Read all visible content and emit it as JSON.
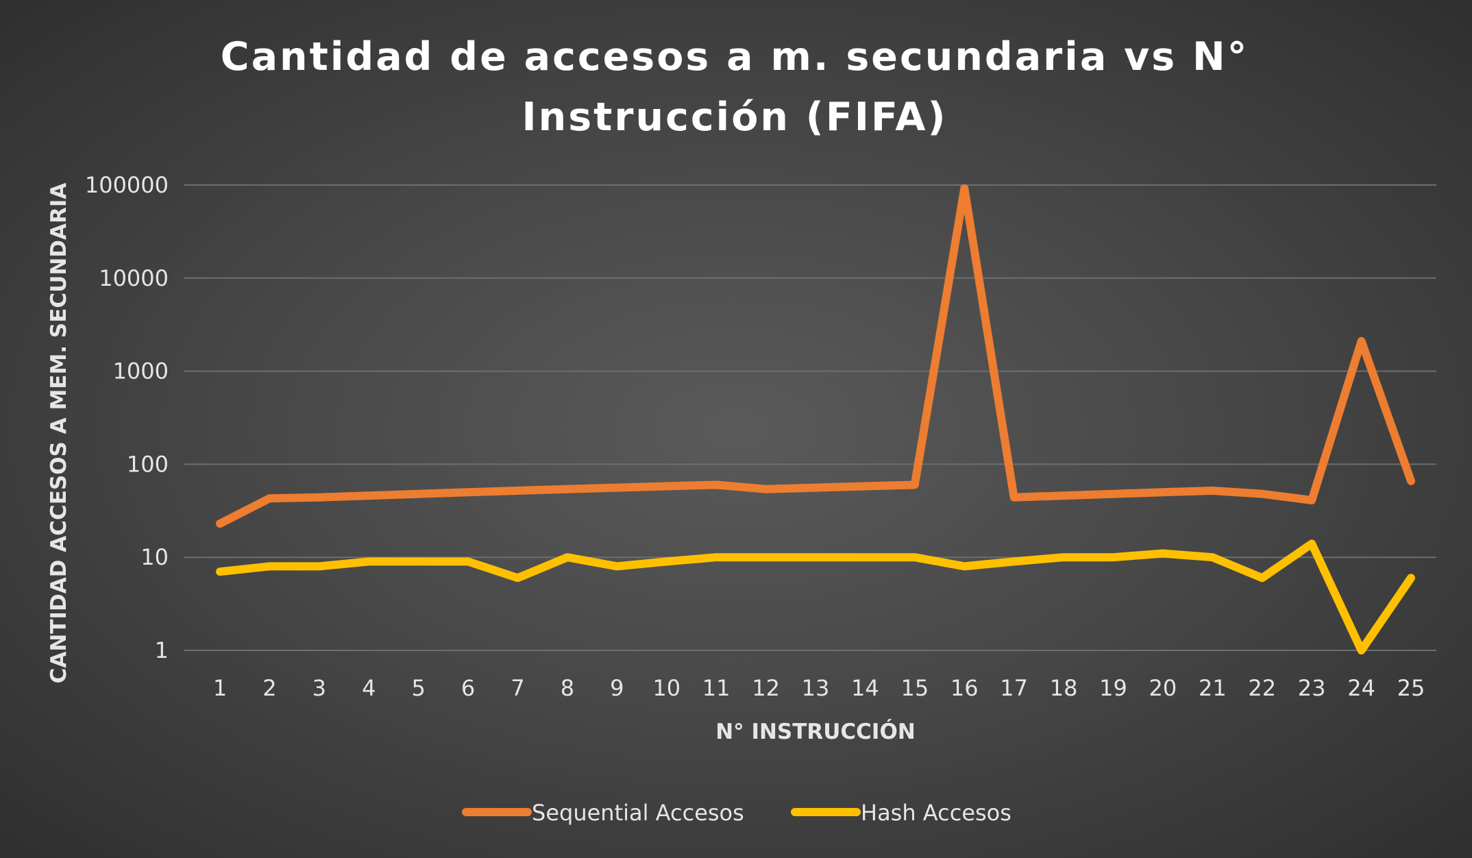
{
  "chart_data": {
    "type": "line",
    "title_lines": [
      "Cantidad de accesos a m. secundaria vs N°",
      "Instrucción (FIFA)"
    ],
    "xlabel": "N° INSTRUCCIÓN",
    "ylabel": "CANTIDAD ACCESOS A MEM. SECUNDARIA",
    "y_scale": "log",
    "ylim": [
      1,
      100000
    ],
    "y_ticks": [
      "1",
      "10",
      "100",
      "1000",
      "10000",
      "100000"
    ],
    "categories": [
      "1",
      "2",
      "3",
      "4",
      "5",
      "6",
      "7",
      "8",
      "9",
      "10",
      "11",
      "12",
      "13",
      "14",
      "15",
      "16",
      "17",
      "18",
      "19",
      "20",
      "21",
      "22",
      "23",
      "24",
      "25"
    ],
    "grid": "horizontal",
    "legend_position": "bottom",
    "series": [
      {
        "name": "Sequential Accesos",
        "color": "#ED7D31",
        "values": [
          23,
          43,
          44,
          46,
          48,
          50,
          52,
          54,
          56,
          58,
          60,
          54,
          56,
          58,
          60,
          92000,
          44,
          46,
          48,
          50,
          52,
          48,
          41,
          2100,
          66
        ]
      },
      {
        "name": "Hash Accesos",
        "color": "#FFC000",
        "values": [
          7,
          8,
          8,
          9,
          9,
          9,
          6,
          10,
          8,
          9,
          10,
          10,
          10,
          10,
          10,
          8,
          9,
          10,
          10,
          11,
          10,
          6,
          14,
          1,
          6
        ]
      }
    ]
  }
}
